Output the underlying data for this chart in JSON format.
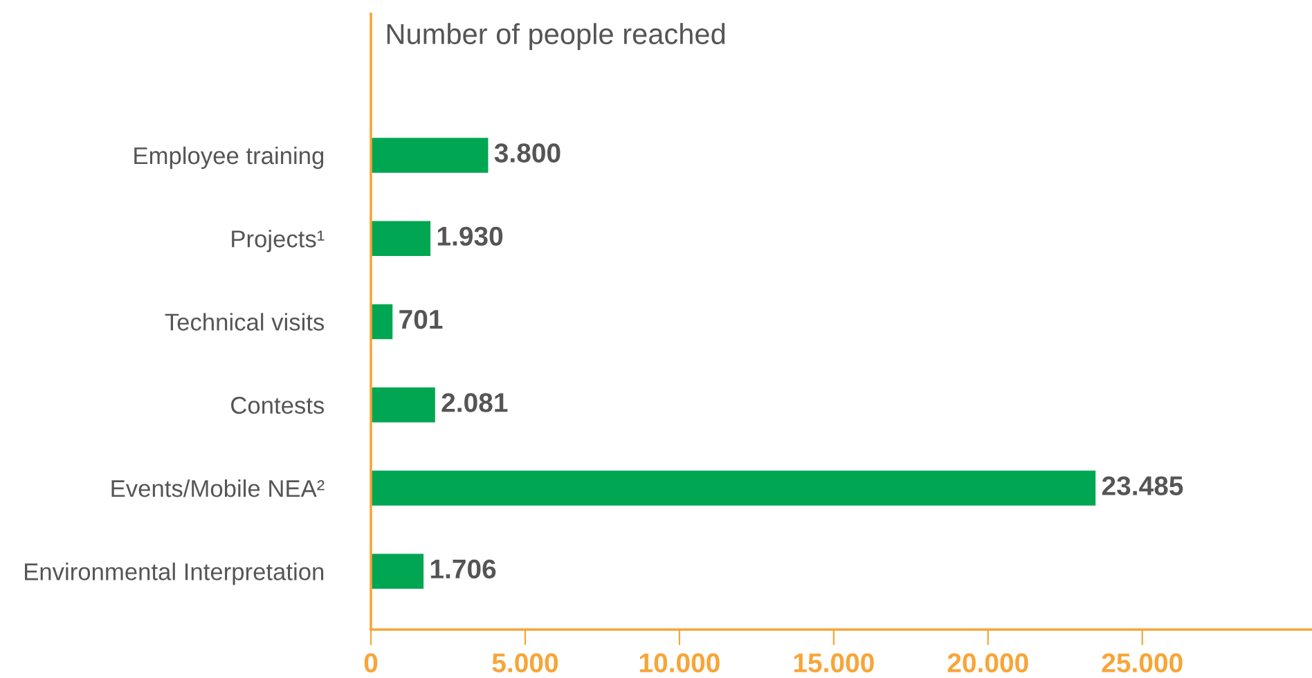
{
  "chart_data": {
    "type": "bar",
    "orientation": "horizontal",
    "xlabel": "Number of people reached",
    "categories": [
      "Employee training",
      "Projects¹",
      "Technical visits",
      "Contests",
      "Events/Mobile NEA²",
      "Environmental Interpretation"
    ],
    "values": [
      3800,
      1930,
      701,
      2081,
      23485,
      1706
    ],
    "value_labels": [
      "3.800",
      "1.930",
      "701",
      "2.081",
      "23.485",
      "1.706"
    ],
    "color": "#00a651",
    "xlim": [
      0,
      30500
    ],
    "xticks": [
      0,
      {
        "value": 5000,
        "label": "5.000"
      },
      {
        "value": 10000,
        "label": "10.000"
      },
      {
        "value": 15000,
        "label": "15.000"
      },
      {
        "value": 20000,
        "label": "20.000"
      },
      {
        "value": 25000,
        "label": "25.000"
      }
    ],
    "grid": false,
    "legend": false
  }
}
